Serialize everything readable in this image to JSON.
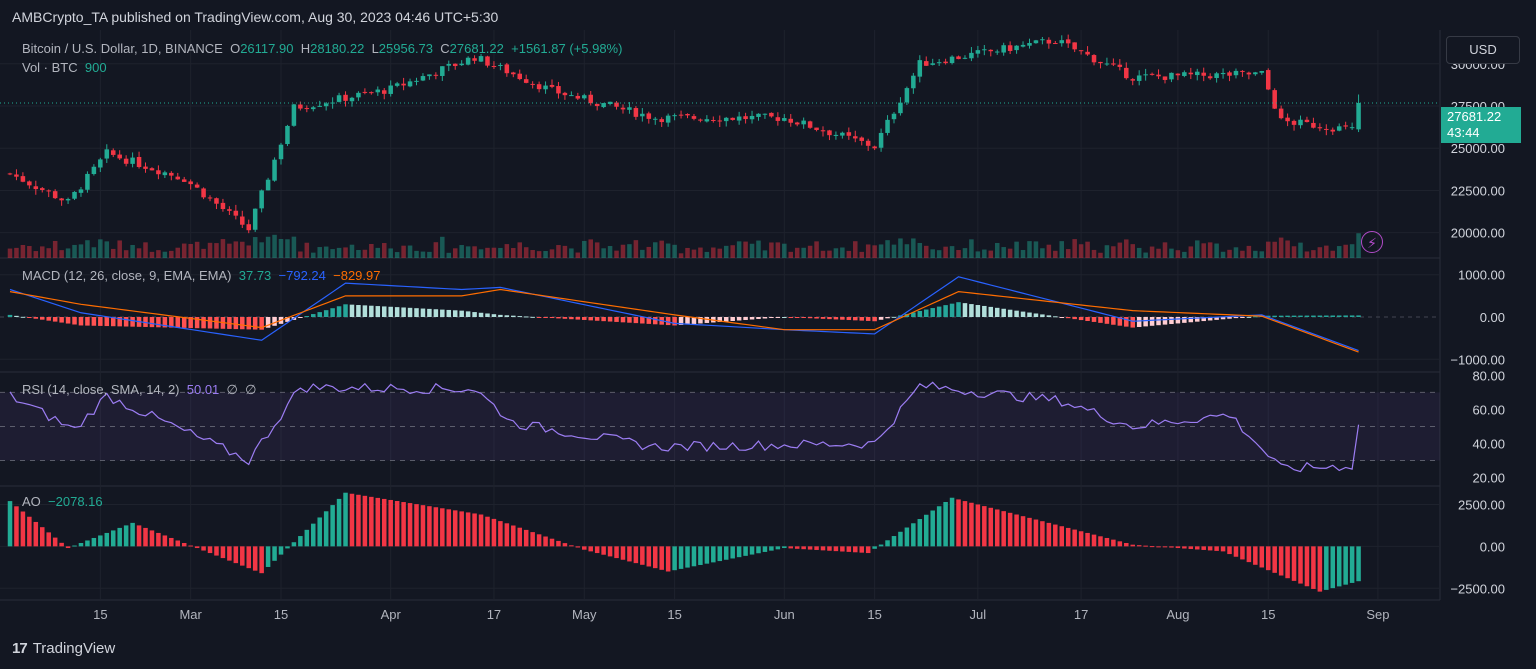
{
  "header": {
    "publisher_line": "AMBCrypto_TA published on TradingView.com, Aug 30, 2023 04:46 UTC+5:30"
  },
  "colors": {
    "up": "#22ab94",
    "down": "#f23645",
    "macd": "#2962ff",
    "signal": "#ff6d00",
    "rsi": "#9c7df3",
    "grid": "#1e222d",
    "bg": "#131722"
  },
  "price_pane": {
    "symbol": "Bitcoin / U.S. Dollar, 1D, BINANCE",
    "o_label": "O",
    "o": "26117.90",
    "h_label": "H",
    "h": "28180.22",
    "l_label": "L",
    "l": "25956.73",
    "c_label": "C",
    "c": "27681.22",
    "change": "+1561.87 (+5.98%)",
    "vol_label": "Vol · BTC",
    "vol_value": "900",
    "currency": "USD",
    "last_price": "27681.22",
    "countdown": "43:44",
    "axis_ticks": [
      "30000.00",
      "27500.00",
      "25000.00",
      "22500.00",
      "20000.00"
    ]
  },
  "macd_pane": {
    "label": "MACD (12, 26, close, 9, EMA, EMA)",
    "hist": "37.73",
    "macd": "−792.24",
    "signal": "−829.97",
    "axis_ticks": [
      "1000.00",
      "0.00",
      "−1000.00"
    ]
  },
  "rsi_pane": {
    "label": "RSI (14, close, SMA, 14, 2)",
    "value": "50.01",
    "na1": "∅",
    "na2": "∅",
    "axis_ticks": [
      "80.00",
      "60.00",
      "40.00",
      "20.00"
    ]
  },
  "ao_pane": {
    "label": "AO",
    "value": "−2078.16",
    "axis_ticks": [
      "2500.00",
      "0.00",
      "−2500.00"
    ]
  },
  "time_axis": [
    "15",
    "Mar",
    "15",
    "Apr",
    "17",
    "May",
    "15",
    "Jun",
    "15",
    "Jul",
    "17",
    "Aug",
    "15",
    "Sep"
  ],
  "footer": {
    "brand": "TradingView",
    "logo": "17"
  },
  "chart_data": {
    "type": "candlestick",
    "title": "Bitcoin / U.S. Dollar, 1D, BINANCE",
    "x_axis": "date",
    "x_range": [
      "2023-02-01",
      "2023-08-30"
    ],
    "price_ylim": [
      18500,
      32000
    ],
    "price_key_points": [
      {
        "date": "2023-02-01",
        "close": 23500
      },
      {
        "date": "2023-02-10",
        "close": 21800
      },
      {
        "date": "2023-02-16",
        "close": 24700
      },
      {
        "date": "2023-02-28",
        "close": 23200
      },
      {
        "date": "2023-03-10",
        "close": 20200
      },
      {
        "date": "2023-03-17",
        "close": 27400
      },
      {
        "date": "2023-04-01",
        "close": 28500
      },
      {
        "date": "2023-04-14",
        "close": 30400
      },
      {
        "date": "2023-04-26",
        "close": 28400
      },
      {
        "date": "2023-05-12",
        "close": 26800
      },
      {
        "date": "2023-06-01",
        "close": 26800
      },
      {
        "date": "2023-06-15",
        "close": 25100
      },
      {
        "date": "2023-06-22",
        "close": 30000
      },
      {
        "date": "2023-07-13",
        "close": 31400
      },
      {
        "date": "2023-07-25",
        "close": 29200
      },
      {
        "date": "2023-08-14",
        "close": 29400
      },
      {
        "date": "2023-08-17",
        "close": 26600
      },
      {
        "date": "2023-08-28",
        "close": 26100
      },
      {
        "date": "2023-08-29",
        "open": 26117.9,
        "high": 28180.22,
        "low": 25956.73,
        "close": 27681.22
      }
    ],
    "macd_ylim": [
      -1300,
      1300
    ],
    "macd_key_points": [
      {
        "date": "2023-02-01",
        "macd": 650,
        "signal": 600
      },
      {
        "date": "2023-02-12",
        "macd": 100,
        "signal": 300
      },
      {
        "date": "2023-03-12",
        "macd": -550,
        "signal": -250
      },
      {
        "date": "2023-03-25",
        "macd": 800,
        "signal": 500
      },
      {
        "date": "2023-04-12",
        "macd": 650,
        "signal": 500
      },
      {
        "date": "2023-04-18",
        "macd": 700,
        "signal": 650
      },
      {
        "date": "2023-05-15",
        "macd": -150,
        "signal": 50
      },
      {
        "date": "2023-06-01",
        "macd": -300,
        "signal": -300
      },
      {
        "date": "2023-06-15",
        "macd": -400,
        "signal": -300
      },
      {
        "date": "2023-06-28",
        "macd": 950,
        "signal": 600
      },
      {
        "date": "2023-07-25",
        "macd": -100,
        "signal": 150
      },
      {
        "date": "2023-08-14",
        "macd": 50,
        "signal": 20
      },
      {
        "date": "2023-08-29",
        "macd": -792.24,
        "signal": -829.97
      }
    ],
    "rsi_ylim": [
      15,
      82
    ],
    "rsi_key_points": [
      {
        "date": "2023-02-01",
        "rsi": 68
      },
      {
        "date": "2023-02-11",
        "rsi": 48
      },
      {
        "date": "2023-02-16",
        "rsi": 68
      },
      {
        "date": "2023-03-10",
        "rsi": 30
      },
      {
        "date": "2023-03-18",
        "rsi": 73
      },
      {
        "date": "2023-04-14",
        "rsi": 72
      },
      {
        "date": "2023-04-20",
        "rsi": 52
      },
      {
        "date": "2023-05-12",
        "rsi": 38
      },
      {
        "date": "2023-06-15",
        "rsi": 40
      },
      {
        "date": "2023-06-22",
        "rsi": 74
      },
      {
        "date": "2023-07-14",
        "rsi": 65
      },
      {
        "date": "2023-07-25",
        "rsi": 50
      },
      {
        "date": "2023-08-09",
        "rsi": 57
      },
      {
        "date": "2023-08-17",
        "rsi": 25
      },
      {
        "date": "2023-08-28",
        "rsi": 27
      },
      {
        "date": "2023-08-29",
        "rsi": 50.01
      }
    ],
    "ao_ylim": [
      -3200,
      3600
    ],
    "ao_key_points": [
      {
        "date": "2023-02-01",
        "ao": 2700
      },
      {
        "date": "2023-02-10",
        "ao": -100
      },
      {
        "date": "2023-02-20",
        "ao": 1400
      },
      {
        "date": "2023-03-12",
        "ao": -1600
      },
      {
        "date": "2023-03-25",
        "ao": 3200
      },
      {
        "date": "2023-04-15",
        "ao": 1900
      },
      {
        "date": "2023-05-01",
        "ao": -200
      },
      {
        "date": "2023-05-14",
        "ao": -1500
      },
      {
        "date": "2023-06-01",
        "ao": -100
      },
      {
        "date": "2023-06-14",
        "ao": -400
      },
      {
        "date": "2023-06-27",
        "ao": 2900
      },
      {
        "date": "2023-07-25",
        "ao": 100
      },
      {
        "date": "2023-08-08",
        "ao": -300
      },
      {
        "date": "2023-08-23",
        "ao": -2700
      },
      {
        "date": "2023-08-29",
        "ao": -2078.16
      }
    ],
    "legend_placement": "top-left",
    "grid": true
  }
}
